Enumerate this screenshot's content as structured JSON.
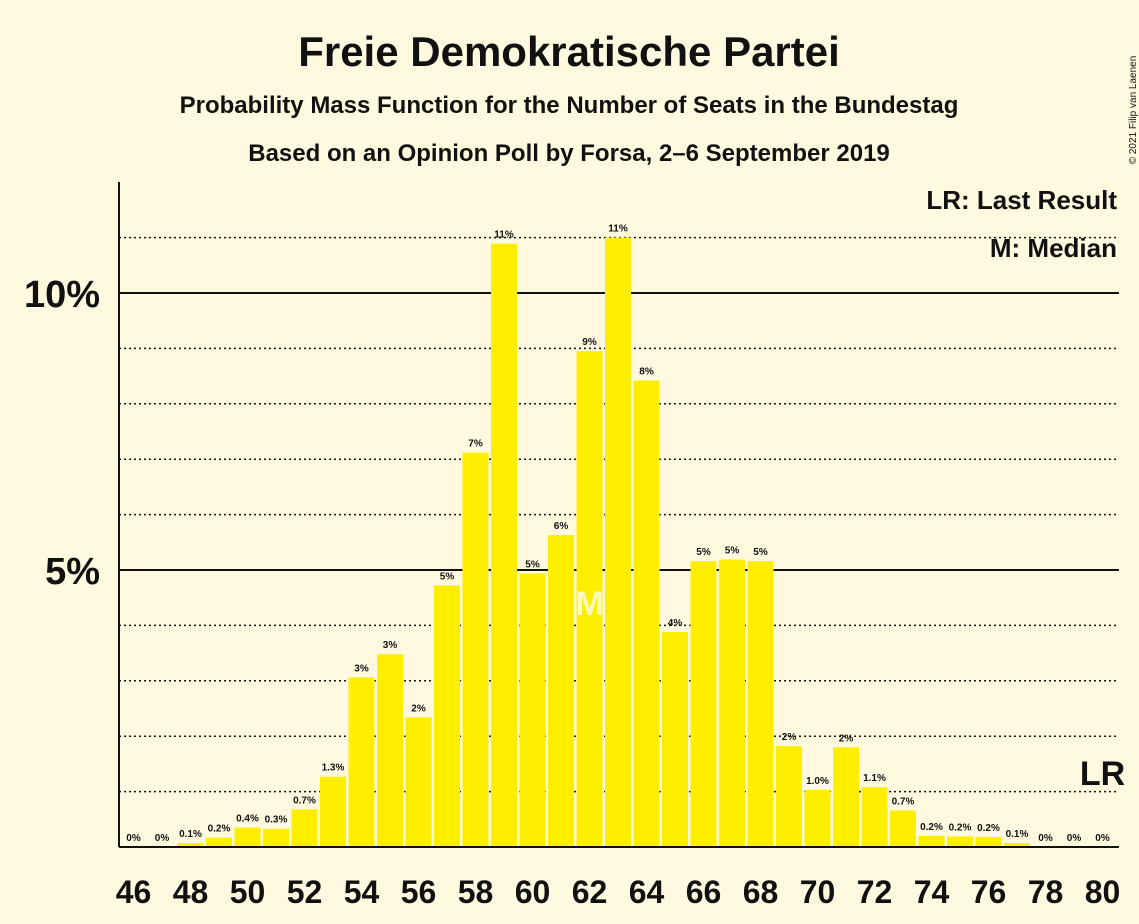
{
  "chart_data": {
    "type": "bar",
    "title": "Freie Demokratische Partei",
    "subtitle": "Probability Mass Function for the Number of Seats in the Bundestag",
    "subtitle2": "Based on an Opinion Poll by Forsa, 2–6 September 2019",
    "copyright": "© 2021 Filip van Laenen",
    "legend": {
      "lr": "LR: Last Result",
      "m": "M: Median"
    },
    "lr_marker": {
      "label": "LR",
      "seat": 80
    },
    "median_marker": {
      "label": "M",
      "seat": 62
    },
    "y_ticks": [
      {
        "value": 5,
        "label": "5%"
      },
      {
        "value": 10,
        "label": "10%"
      }
    ],
    "ylim": [
      0,
      12
    ],
    "xlim": [
      46,
      80
    ],
    "x_tick_labels": [
      "46",
      "48",
      "50",
      "52",
      "54",
      "56",
      "58",
      "60",
      "62",
      "64",
      "66",
      "68",
      "70",
      "72",
      "74",
      "76",
      "78",
      "80"
    ],
    "bar_color": "#ffee00",
    "bars": [
      {
        "seat": 46,
        "value": 0,
        "label": "0%"
      },
      {
        "seat": 47,
        "value": 0,
        "label": "0%"
      },
      {
        "seat": 48,
        "value": 0.07,
        "label": "0.1%"
      },
      {
        "seat": 49,
        "value": 0.17,
        "label": "0.2%"
      },
      {
        "seat": 50,
        "value": 0.35,
        "label": "0.4%"
      },
      {
        "seat": 51,
        "value": 0.33,
        "label": "0.3%"
      },
      {
        "seat": 52,
        "value": 0.68,
        "label": "0.7%"
      },
      {
        "seat": 53,
        "value": 1.27,
        "label": "1.3%"
      },
      {
        "seat": 54,
        "value": 3.06,
        "label": "3%"
      },
      {
        "seat": 55,
        "value": 3.48,
        "label": "3%"
      },
      {
        "seat": 56,
        "value": 2.34,
        "label": "2%"
      },
      {
        "seat": 57,
        "value": 4.72,
        "label": "5%"
      },
      {
        "seat": 58,
        "value": 7.12,
        "label": "7%"
      },
      {
        "seat": 59,
        "value": 10.89,
        "label": "11%"
      },
      {
        "seat": 60,
        "value": 4.94,
        "label": "5%"
      },
      {
        "seat": 61,
        "value": 5.63,
        "label": "6%"
      },
      {
        "seat": 62,
        "value": 8.95,
        "label": "9%"
      },
      {
        "seat": 63,
        "value": 11.0,
        "label": "11%"
      },
      {
        "seat": 64,
        "value": 8.42,
        "label": "8%"
      },
      {
        "seat": 65,
        "value": 3.88,
        "label": "4%"
      },
      {
        "seat": 66,
        "value": 5.16,
        "label": "5%"
      },
      {
        "seat": 67,
        "value": 5.19,
        "label": "5%"
      },
      {
        "seat": 68,
        "value": 5.16,
        "label": "5%"
      },
      {
        "seat": 69,
        "value": 1.82,
        "label": "2%"
      },
      {
        "seat": 70,
        "value": 1.03,
        "label": "1.0%"
      },
      {
        "seat": 71,
        "value": 1.8,
        "label": "2%"
      },
      {
        "seat": 72,
        "value": 1.08,
        "label": "1.1%"
      },
      {
        "seat": 73,
        "value": 0.66,
        "label": "0.7%"
      },
      {
        "seat": 74,
        "value": 0.2,
        "label": "0.2%"
      },
      {
        "seat": 75,
        "value": 0.19,
        "label": "0.2%"
      },
      {
        "seat": 76,
        "value": 0.18,
        "label": "0.2%"
      },
      {
        "seat": 77,
        "value": 0.07,
        "label": "0.1%"
      },
      {
        "seat": 78,
        "value": 0,
        "label": "0%"
      },
      {
        "seat": 79,
        "value": 0,
        "label": "0%"
      },
      {
        "seat": 80,
        "value": 0,
        "label": "0%"
      }
    ]
  }
}
